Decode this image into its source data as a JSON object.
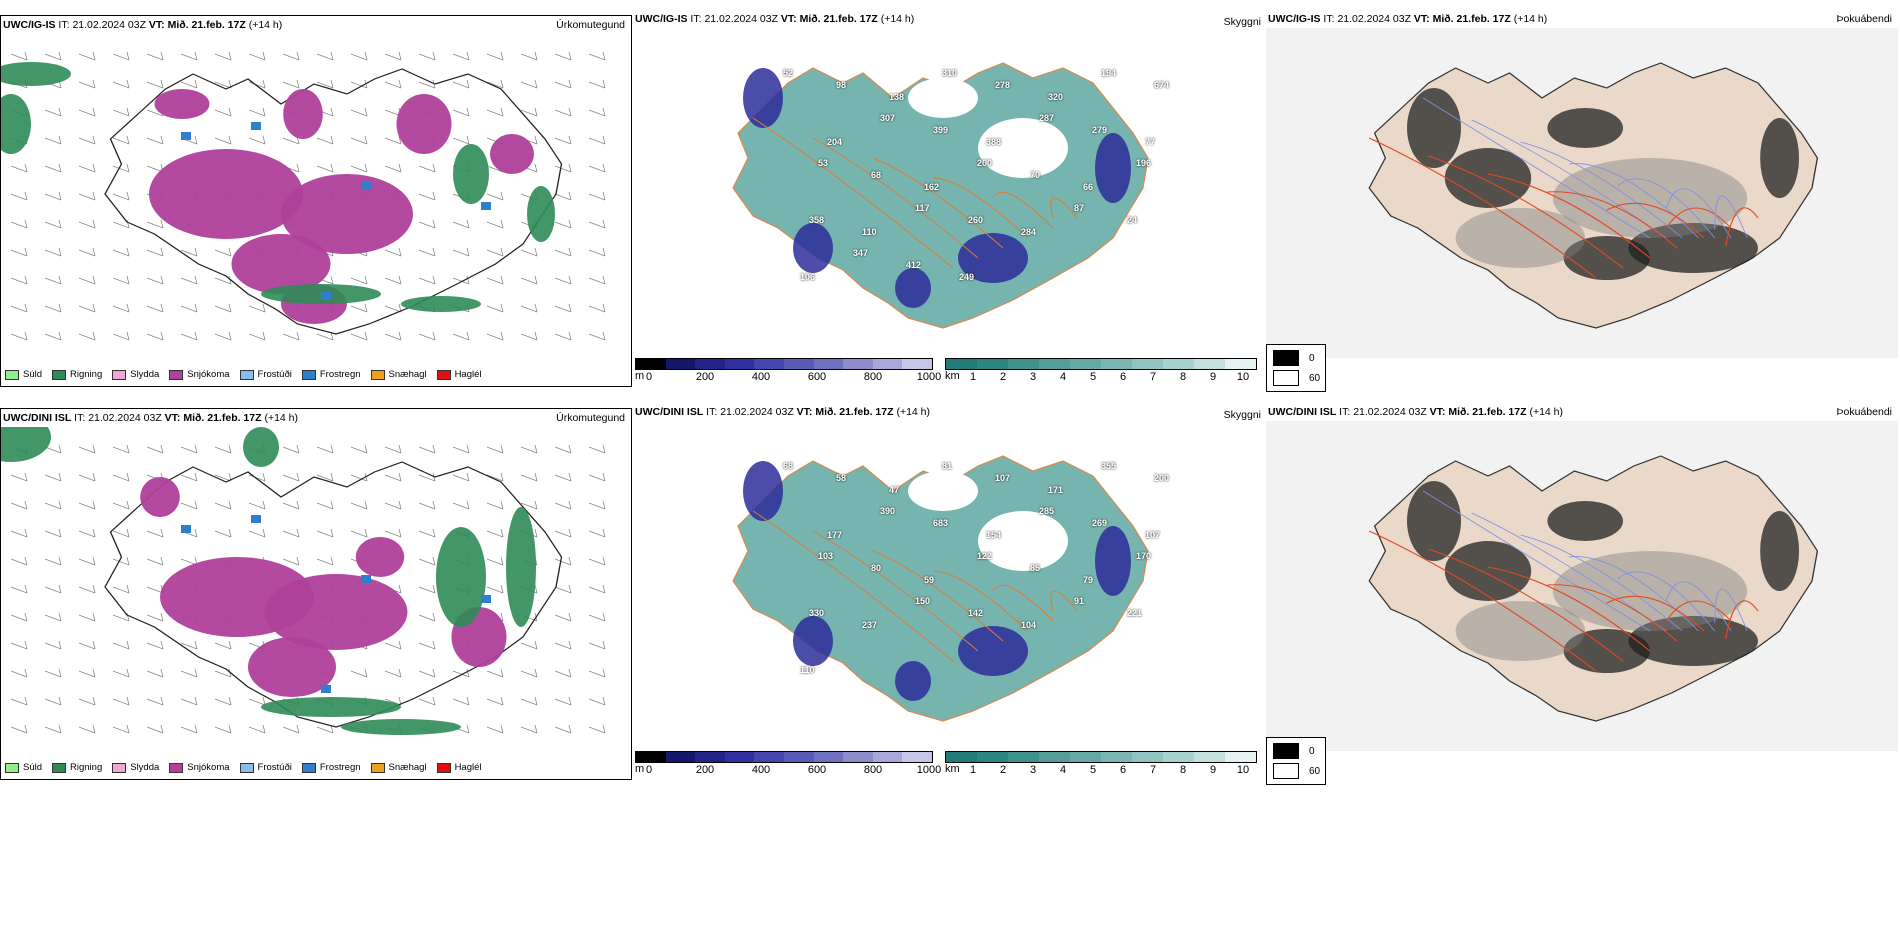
{
  "rows": [
    {
      "model": "UWC/IG-IS",
      "it_label": "IT:",
      "it_value": "21.02.2024 03Z",
      "vt_label": "VT:",
      "vt_value": "Mið. 21.feb. 17Z",
      "lead": "(+14 h)",
      "precip_title": "Úrkomutegund",
      "cloud_title": "Skyggni",
      "fog_title": "Þokuábendi",
      "elev_labels": [
        "52",
        "98",
        "138",
        "310",
        "278",
        "320",
        "194",
        "674",
        "204",
        "307",
        "399",
        "388",
        "287",
        "279",
        "77",
        "53",
        "68",
        "162",
        "200",
        "70",
        "66",
        "196",
        "358",
        "110",
        "117",
        "260",
        "284",
        "87",
        "24",
        "106",
        "347",
        "412",
        "249"
      ]
    },
    {
      "model": "UWC/DINI ISL",
      "it_label": "IT:",
      "it_value": "21.02.2024 03Z",
      "vt_label": "VT:",
      "vt_value": "Mið. 21.feb. 17Z",
      "lead": "(+14 h)",
      "precip_title": "Úrkomutegund",
      "cloud_title": "Skyggni",
      "fog_title": "Þokuábendi",
      "elev_labels": [
        "68",
        "58",
        "47",
        "81",
        "107",
        "171",
        "355",
        "200",
        "177",
        "390",
        "683",
        "154",
        "285",
        "269",
        "107",
        "103",
        "80",
        "59",
        "122",
        "85",
        "79",
        "170",
        "330",
        "237",
        "150",
        "142",
        "104",
        "91",
        "221",
        "110"
      ]
    }
  ],
  "precip_legend": [
    {
      "label": "Súld",
      "color": "#90ee90"
    },
    {
      "label": "Rigning",
      "color": "#2e8b57"
    },
    {
      "label": "Slydda",
      "color": "#f4a6d7"
    },
    {
      "label": "Snjókoma",
      "color": "#b0409a"
    },
    {
      "label": "Frostúði",
      "color": "#87bdf0"
    },
    {
      "label": "Frostregn",
      "color": "#2f7fcf"
    },
    {
      "label": "Snæhagl",
      "color": "#f0a020"
    },
    {
      "label": "Haglél",
      "color": "#e01010"
    }
  ],
  "elev_bar": {
    "unit": "m",
    "ticks": [
      "0",
      "200",
      "400",
      "600",
      "800",
      "1000"
    ],
    "colors": [
      "#000000",
      "#15156a",
      "#23238a",
      "#3030a0",
      "#4545b0",
      "#5a5ab8",
      "#7070c0",
      "#8c8ccc",
      "#a8a8d8",
      "#c6c6e6"
    ]
  },
  "vis_bar": {
    "unit": "km",
    "ticks": [
      "1",
      "2",
      "3",
      "4",
      "5",
      "6",
      "7",
      "8",
      "9",
      "10"
    ],
    "colors": [
      "#1f7a78",
      "#2d8583",
      "#3f918e",
      "#529d9a",
      "#66aaa7",
      "#7ab7b4",
      "#90c4c1",
      "#a8d2cf",
      "#c2e0de",
      "#e6f2f1"
    ]
  },
  "fog_legend": [
    {
      "value": "0",
      "color": "#000000"
    },
    {
      "value": "60",
      "color": "#ffffff"
    }
  ]
}
